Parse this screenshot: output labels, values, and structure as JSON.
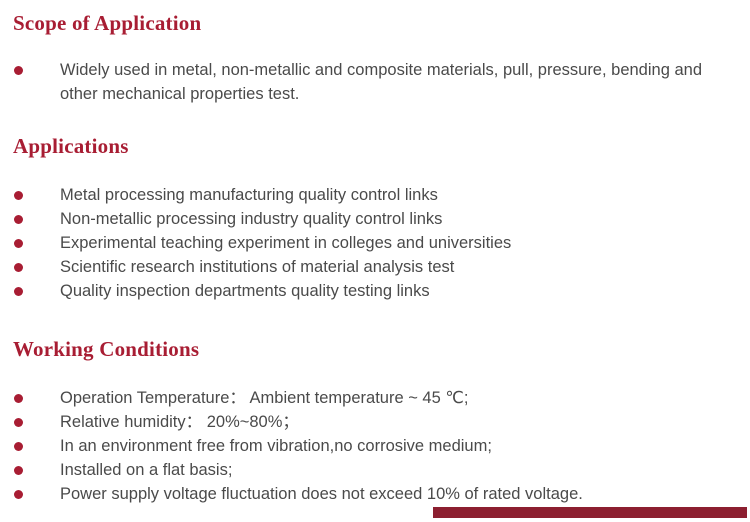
{
  "page": {
    "accent_color": "#A81D33",
    "text_color": "#4a4a4a",
    "footer_bar_color": "#8C1F30"
  },
  "sections": [
    {
      "heading": "Scope of Application",
      "items": [
        "Widely used in metal, non-metallic and composite materials, pull, pressure, bending and other mechanical properties test."
      ]
    },
    {
      "heading": "Applications",
      "items": [
        "Metal processing manufacturing quality control links",
        "Non-metallic processing industry quality control links",
        "Experimental teaching experiment in colleges and universities",
        "Scientific research institutions of material analysis test",
        "Quality inspection departments quality testing links"
      ]
    },
    {
      "heading": "Working Conditions",
      "items": [
        "Operation Temperature： Ambient temperature ~ 45 ℃;",
        "Relative humidity： 20%~80%；",
        "In an environment free from vibration,no corrosive medium;",
        "Installed on a flat basis;",
        "Power supply voltage fluctuation does not exceed 10% of rated voltage."
      ]
    }
  ]
}
